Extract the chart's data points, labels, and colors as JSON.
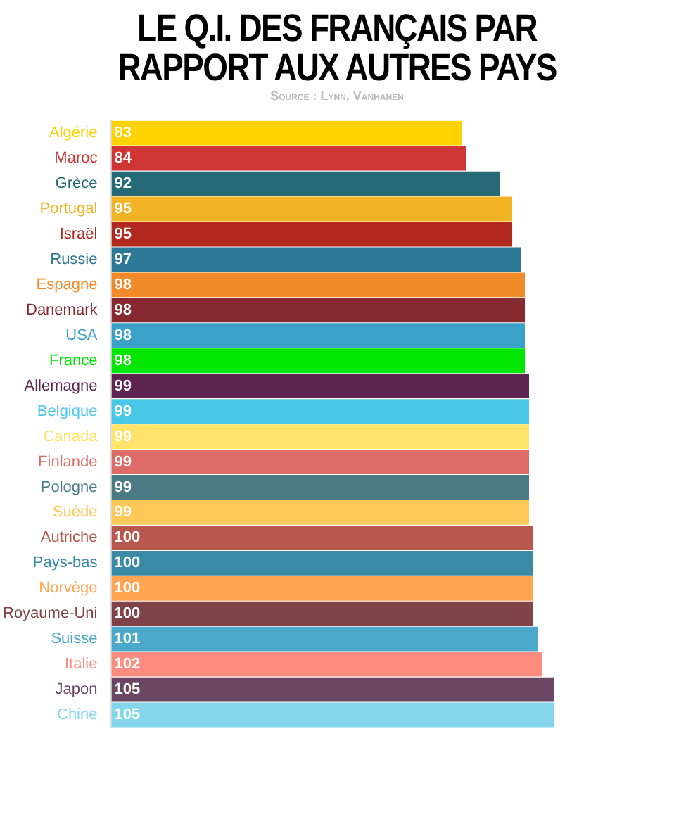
{
  "chart_data": {
    "type": "bar",
    "orientation": "horizontal",
    "title": "LE Q.I. DES FRANÇAIS PAR RAPPORT AUX AUTRES PAYS",
    "subtitle": "Source : Lynn, Vanhanen",
    "categories": [
      "Algérie",
      "Maroc",
      "Grèce",
      "Portugal",
      "Israël",
      "Russie",
      "Espagne",
      "Danemark",
      "USA",
      "France",
      "Allemagne",
      "Belgique",
      "Canada",
      "Finlande",
      "Pologne",
      "Suède",
      "Autriche",
      "Pays-bas",
      "Norvège",
      "Royaume-Uni",
      "Suisse",
      "Italie",
      "Japon",
      "Chine"
    ],
    "values": [
      83,
      84,
      92,
      95,
      95,
      97,
      98,
      98,
      98,
      98,
      99,
      99,
      99,
      99,
      99,
      99,
      100,
      100,
      100,
      100,
      101,
      102,
      105,
      105
    ],
    "colors": [
      "#ffd200",
      "#d03535",
      "#266a78",
      "#f2b425",
      "#b3281e",
      "#2c7896",
      "#f28a2a",
      "#85282f",
      "#3aa1c8",
      "#00e600",
      "#5d2550",
      "#4ac8e8",
      "#ffe36a",
      "#dd6b68",
      "#4a7b84",
      "#ffc857",
      "#b8574d",
      "#3a8aa5",
      "#ffa552",
      "#804349",
      "#4da9cb",
      "#ff8c7e",
      "#6a4663",
      "#84d6ea"
    ],
    "xlim": [
      0,
      105
    ],
    "data_labels": true,
    "grid": false,
    "legend": false
  }
}
